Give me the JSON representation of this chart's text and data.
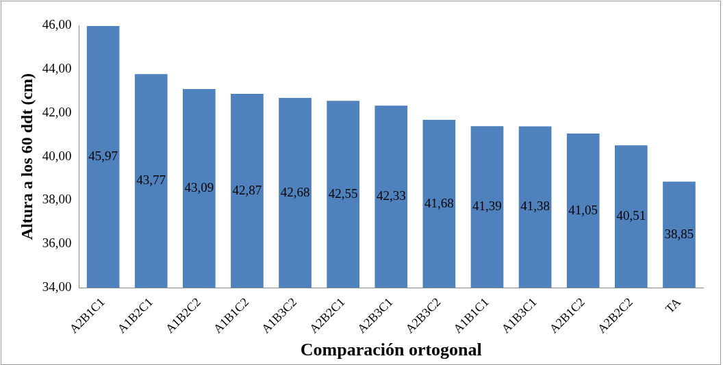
{
  "chart_data": {
    "type": "bar",
    "xlabel": "Comparación ortogonal",
    "ylabel": "Altura a los 60 ddt (cm)",
    "categories": [
      "A2B1C1",
      "A1B2C1",
      "A1B2C2",
      "A1B1C2",
      "A1B3C2",
      "A2B2C1",
      "A2B3C1",
      "A2B3C2",
      "A1B1C1",
      "A1B3C1",
      "A2B1C2",
      "A2B2C2",
      "TA"
    ],
    "values": [
      45.97,
      43.77,
      43.09,
      42.87,
      42.68,
      42.55,
      42.33,
      41.68,
      41.39,
      41.38,
      41.05,
      40.51,
      38.85
    ],
    "value_labels": [
      "45,97",
      "43,77",
      "43,09",
      "42,87",
      "42,68",
      "42,55",
      "42,33",
      "41,68",
      "41,39",
      "41,38",
      "41,05",
      "40,51",
      "38,85"
    ],
    "color": "#4f81bd",
    "ylim": [
      34,
      46
    ],
    "yticks": [
      {
        "value": 34,
        "label": "34,00"
      },
      {
        "value": 36,
        "label": "36,00"
      },
      {
        "value": 38,
        "label": "38,00"
      },
      {
        "value": 40,
        "label": "40,00"
      },
      {
        "value": 42,
        "label": "42,00"
      },
      {
        "value": 44,
        "label": "44,00"
      },
      {
        "value": 46,
        "label": "46,00"
      }
    ],
    "grid": false,
    "legend": false
  }
}
